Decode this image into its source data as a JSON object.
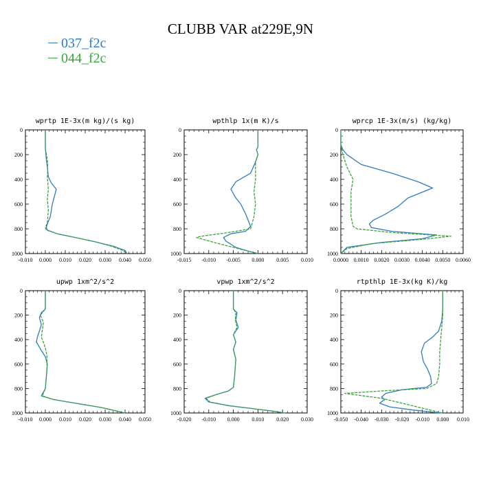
{
  "figure": {
    "title": "CLUBB VAR at229E,9N"
  },
  "legend": [
    {
      "label": "037_f2c",
      "color": "#2f7bbf"
    },
    {
      "label": "044_f2c",
      "color": "#3aa53a"
    }
  ],
  "colors": {
    "series_1": "#2f7bbf",
    "series_2": "#3aa53a",
    "series_2_dash": "4,1.5"
  },
  "chart_data": [
    {
      "type": "line",
      "title": "wprtp  1E-3x(m kg)/(s kg)",
      "xlim": [
        -0.01,
        0.05
      ],
      "ylim": [
        1000,
        0
      ],
      "y_inverted": true,
      "xticks": [
        -0.01,
        0.0,
        0.01,
        0.02,
        0.03,
        0.04,
        0.05
      ],
      "xtick_labels": [
        "-0.010",
        "0.000",
        "0.010",
        "0.020",
        "0.030",
        "0.040",
        "0.050"
      ],
      "yticks": [
        0,
        200,
        400,
        600,
        800,
        1000
      ],
      "ytick_labels": [
        "0",
        "200",
        "400",
        "600",
        "800",
        "1000"
      ],
      "series": [
        {
          "name": "037_f2c",
          "x": [
            0.0,
            0.0,
            0.0005,
            0.001,
            0.0015,
            0.003,
            0.0055,
            0.0045,
            0.0035,
            0.0025,
            0.001,
            0.0005,
            0.001,
            0.006,
            0.015,
            0.025,
            0.034,
            0.04,
            0.041
          ],
          "y": [
            0,
            150,
            240,
            300,
            380,
            430,
            480,
            540,
            600,
            700,
            760,
            790,
            810,
            840,
            870,
            905,
            940,
            975,
            1000
          ]
        },
        {
          "name": "044_f2c",
          "x": [
            0.0,
            0.0,
            0.001,
            0.0012,
            0.001,
            0.0015,
            0.001,
            0.0015,
            0.001,
            0.0,
            0.0005,
            0.006,
            0.015,
            0.025,
            0.033,
            0.039,
            0.041
          ],
          "y": [
            0,
            150,
            240,
            300,
            380,
            480,
            560,
            650,
            750,
            790,
            810,
            840,
            870,
            905,
            940,
            975,
            1000
          ]
        }
      ]
    },
    {
      "type": "line",
      "title": "wpthlp  1x(m K)/s",
      "xlim": [
        -0.015,
        0.01
      ],
      "ylim": [
        1000,
        0
      ],
      "y_inverted": true,
      "xticks": [
        -0.015,
        -0.01,
        -0.005,
        0.0,
        0.005,
        0.01
      ],
      "xtick_labels": [
        "-0.015",
        "-0.010",
        "-0.005",
        "0.000",
        "0.005",
        "0.010"
      ],
      "yticks": [
        0,
        200,
        400,
        600,
        800,
        1000
      ],
      "ytick_labels": [
        "0",
        "200",
        "400",
        "600",
        "800",
        "1000"
      ],
      "series": [
        {
          "name": "037_f2c",
          "x": [
            0.0,
            0.0,
            -0.0003,
            0.0,
            -0.0005,
            -0.0015,
            -0.0045,
            -0.0055,
            -0.0045,
            -0.0035,
            -0.0025,
            -0.0015,
            -0.0025,
            -0.0055,
            -0.007,
            -0.0065,
            -0.0045,
            -0.002,
            0.0
          ],
          "y": [
            0,
            140,
            160,
            200,
            260,
            350,
            420,
            480,
            550,
            600,
            680,
            780,
            820,
            840,
            870,
            900,
            950,
            980,
            1000
          ]
        },
        {
          "name": "044_f2c",
          "x": [
            0.0,
            0.0,
            -0.0003,
            0.0,
            -0.0005,
            -0.0005,
            -0.0008,
            -0.0005,
            -0.0008,
            -0.0015,
            -0.006,
            -0.0115,
            -0.0125,
            -0.008,
            -0.003,
            0.0
          ],
          "y": [
            0,
            140,
            160,
            200,
            260,
            400,
            500,
            600,
            700,
            800,
            830,
            860,
            870,
            920,
            970,
            1000
          ]
        }
      ]
    },
    {
      "type": "line",
      "title": "wprcp  1E-3x(m/s) (kg/kg)",
      "xlim": [
        0.0,
        0.006
      ],
      "ylim": [
        1000,
        0
      ],
      "y_inverted": true,
      "xticks": [
        0.0,
        0.001,
        0.002,
        0.003,
        0.004,
        0.005,
        0.006
      ],
      "xtick_labels": [
        "0.0000",
        "0.0010",
        "0.0020",
        "0.0030",
        "0.0040",
        "0.0050",
        "0.0060"
      ],
      "yticks": [
        0,
        200,
        400,
        600,
        800,
        1000
      ],
      "ytick_labels": [
        "0",
        "200",
        "400",
        "600",
        "800",
        "1000"
      ],
      "series": [
        {
          "name": "037_f2c",
          "x": [
            0.0,
            0.0,
            0.0001,
            0.0003,
            0.001,
            0.0025,
            0.0038,
            0.0045,
            0.0033,
            0.0028,
            0.0022,
            0.0016,
            0.0014,
            0.0015,
            0.0025,
            0.0047,
            0.004,
            0.002,
            0.0003,
            0.0
          ],
          "y": [
            0,
            120,
            160,
            200,
            280,
            350,
            420,
            470,
            550,
            620,
            680,
            730,
            760,
            790,
            820,
            850,
            880,
            910,
            950,
            1000
          ]
        },
        {
          "name": "044_f2c",
          "x": [
            0.0,
            0.0,
            0.0001,
            0.0003,
            0.0006,
            0.0005,
            0.0005,
            0.0005,
            0.0006,
            0.0008,
            0.0025,
            0.0054,
            0.004,
            0.0015,
            0.0003,
            0.0
          ],
          "y": [
            0,
            120,
            200,
            300,
            400,
            500,
            600,
            700,
            780,
            800,
            830,
            860,
            885,
            920,
            960,
            1000
          ]
        }
      ]
    },
    {
      "type": "line",
      "title": "upwp  1xm^2/s^2",
      "xlim": [
        -0.01,
        0.05
      ],
      "ylim": [
        1000,
        0
      ],
      "y_inverted": true,
      "xticks": [
        -0.01,
        0.0,
        0.01,
        0.02,
        0.03,
        0.04,
        0.05
      ],
      "xtick_labels": [
        "-0.010",
        "0.000",
        "0.010",
        "0.020",
        "0.030",
        "0.040",
        "0.050"
      ],
      "yticks": [
        0,
        200,
        400,
        600,
        800,
        1000
      ],
      "ytick_labels": [
        "0",
        "200",
        "400",
        "600",
        "800",
        "1000"
      ],
      "series": [
        {
          "name": "037_f2c",
          "x": [
            0.0,
            0.0,
            -0.002,
            -0.003,
            -0.002,
            -0.003,
            -0.004,
            -0.0045,
            -0.003,
            -0.002,
            0.0,
            0.001,
            0.0005,
            0.0,
            -0.002,
            0.004,
            0.015,
            0.028,
            0.036,
            0.04
          ],
          "y": [
            0,
            150,
            180,
            220,
            280,
            330,
            380,
            420,
            460,
            490,
            540,
            600,
            700,
            800,
            860,
            890,
            920,
            955,
            985,
            1000
          ]
        },
        {
          "name": "044_f2c",
          "x": [
            0.0,
            0.0,
            -0.0015,
            -0.0025,
            -0.001,
            -0.0015,
            -0.002,
            -0.001,
            0.0,
            0.0008,
            0.0008,
            0.0,
            -0.0015,
            0.004,
            0.015,
            0.028,
            0.036,
            0.04
          ],
          "y": [
            0,
            150,
            180,
            200,
            260,
            320,
            380,
            420,
            470,
            530,
            650,
            800,
            860,
            890,
            920,
            955,
            985,
            1000
          ]
        }
      ]
    },
    {
      "type": "line",
      "title": "vpwp  1xm^2/s^2",
      "xlim": [
        -0.02,
        0.03
      ],
      "ylim": [
        1000,
        0
      ],
      "y_inverted": true,
      "xticks": [
        -0.02,
        -0.01,
        0.0,
        0.01,
        0.02,
        0.03
      ],
      "xtick_labels": [
        "-0.020",
        "-0.010",
        "0.000",
        "0.010",
        "0.020",
        "0.030"
      ],
      "yticks": [
        0,
        200,
        400,
        600,
        800,
        1000
      ],
      "ytick_labels": [
        "0",
        "200",
        "400",
        "600",
        "800",
        "1000"
      ],
      "series": [
        {
          "name": "037_f2c",
          "x": [
            0.0,
            0.0,
            0.0015,
            0.001,
            0.002,
            0.0,
            0.001,
            0.0,
            0.001,
            0.0005,
            0.0,
            -0.002,
            -0.007,
            -0.0115,
            -0.01,
            -0.002,
            0.008,
            0.016,
            0.021
          ],
          "y": [
            0,
            150,
            180,
            240,
            300,
            360,
            420,
            480,
            560,
            700,
            790,
            820,
            850,
            880,
            910,
            940,
            965,
            985,
            1000
          ]
        },
        {
          "name": "044_f2c",
          "x": [
            0.0,
            0.0,
            0.001,
            0.0008,
            0.0015,
            0.0,
            0.001,
            0.0,
            0.001,
            0.0005,
            0.0,
            -0.002,
            -0.007,
            -0.011,
            -0.0095,
            -0.002,
            0.008,
            0.016,
            0.021
          ],
          "y": [
            0,
            150,
            180,
            240,
            300,
            360,
            420,
            480,
            560,
            700,
            790,
            820,
            850,
            880,
            910,
            940,
            965,
            985,
            1000
          ]
        }
      ]
    },
    {
      "type": "line",
      "title": "rtpthlp  1E-3x(kg K)/kg",
      "xlim": [
        -0.05,
        0.01
      ],
      "ylim": [
        1000,
        0
      ],
      "y_inverted": true,
      "xticks": [
        -0.05,
        -0.04,
        -0.03,
        -0.02,
        -0.01,
        0.0,
        0.01
      ],
      "xtick_labels": [
        "-0.050",
        "-0.040",
        "-0.030",
        "-0.020",
        "-0.010",
        "0.000",
        "0.010"
      ],
      "yticks": [
        0,
        200,
        400,
        600,
        800,
        1000
      ],
      "ytick_labels": [
        "0",
        "200",
        "400",
        "600",
        "800",
        "1000"
      ],
      "series": [
        {
          "name": "037_f2c",
          "x": [
            0.0,
            0.0,
            -0.0005,
            -0.002,
            -0.005,
            -0.009,
            -0.0105,
            -0.0095,
            -0.0075,
            -0.006,
            -0.0055,
            -0.008,
            -0.02,
            -0.028,
            -0.03,
            -0.0285,
            -0.031,
            -0.026,
            -0.015,
            -0.004,
            0.0
          ],
          "y": [
            0,
            150,
            250,
            330,
            380,
            430,
            500,
            580,
            640,
            700,
            760,
            790,
            810,
            840,
            870,
            890,
            920,
            950,
            975,
            995,
            1000
          ]
        },
        {
          "name": "044_f2c",
          "x": [
            0.0,
            0.0,
            -0.0005,
            -0.001,
            -0.0015,
            -0.0015,
            -0.002,
            -0.003,
            -0.008,
            -0.03,
            -0.048,
            -0.03,
            -0.015,
            -0.004,
            0.0
          ],
          "y": [
            0,
            200,
            300,
            400,
            500,
            600,
            700,
            760,
            800,
            820,
            840,
            880,
            940,
            985,
            1000
          ]
        }
      ]
    }
  ]
}
